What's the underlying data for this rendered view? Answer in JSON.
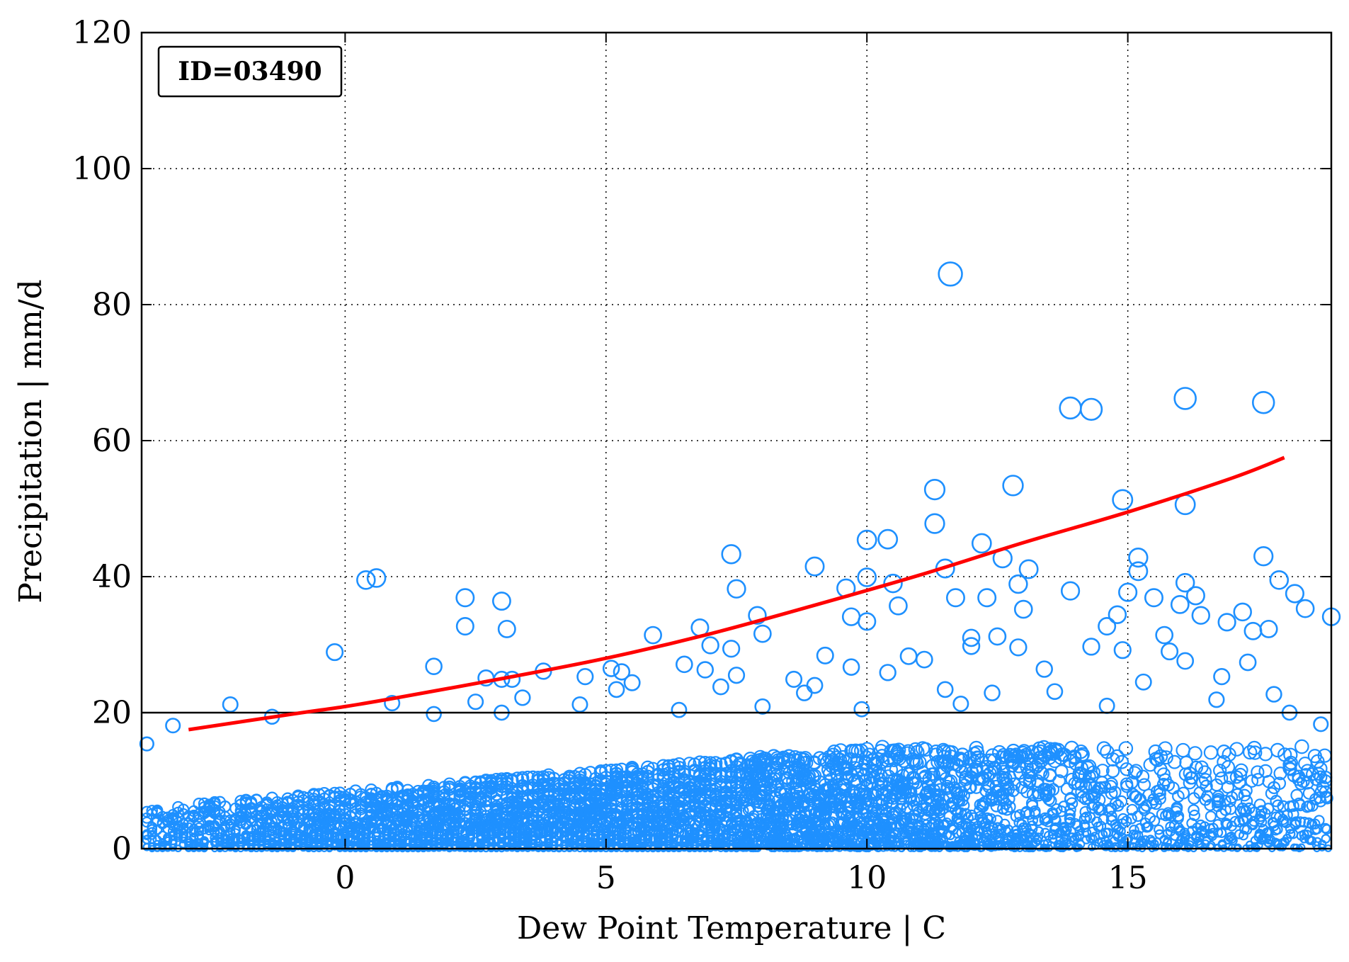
{
  "chart_data": {
    "type": "scatter",
    "xlabel": "Dew Point Temperature | C",
    "ylabel": "Precipitation | mm/d",
    "annotation": "ID=03490",
    "xlim": [
      -3.9,
      18.9
    ],
    "ylim": [
      0,
      120
    ],
    "x_ticks": [
      0,
      5,
      10,
      15
    ],
    "y_ticks": [
      0,
      20,
      40,
      60,
      80,
      100,
      120
    ],
    "grid": true,
    "threshold_line": 20,
    "colors": {
      "marker": "#1E90FF",
      "fit": "#FF0000",
      "axes": "#000000"
    },
    "outliers": [
      {
        "x": 11.6,
        "y": 84.5
      },
      {
        "x": 16.1,
        "y": 66.2
      },
      {
        "x": 17.6,
        "y": 65.6
      },
      {
        "x": 13.9,
        "y": 64.8
      },
      {
        "x": 14.3,
        "y": 64.6
      },
      {
        "x": 12.8,
        "y": 53.4
      },
      {
        "x": 11.3,
        "y": 52.8
      },
      {
        "x": 14.9,
        "y": 51.3
      },
      {
        "x": 16.1,
        "y": 50.6
      },
      {
        "x": 11.3,
        "y": 47.8
      },
      {
        "x": 10.4,
        "y": 45.5
      },
      {
        "x": 10.0,
        "y": 45.4
      },
      {
        "x": 12.2,
        "y": 44.9
      },
      {
        "x": 15.2,
        "y": 42.8
      },
      {
        "x": 17.6,
        "y": 43.0
      },
      {
        "x": 7.4,
        "y": 43.3
      },
      {
        "x": 12.6,
        "y": 42.7
      },
      {
        "x": 9.0,
        "y": 41.5
      },
      {
        "x": 11.5,
        "y": 41.2
      },
      {
        "x": 13.1,
        "y": 41.1
      },
      {
        "x": 15.2,
        "y": 40.8
      },
      {
        "x": 0.4,
        "y": 39.5
      },
      {
        "x": 0.6,
        "y": 39.8
      },
      {
        "x": 10.0,
        "y": 39.9
      },
      {
        "x": 10.5,
        "y": 39.0
      },
      {
        "x": 17.9,
        "y": 39.5
      },
      {
        "x": 16.1,
        "y": 39.1
      },
      {
        "x": 12.9,
        "y": 38.9
      },
      {
        "x": 9.6,
        "y": 38.3
      },
      {
        "x": 7.5,
        "y": 38.2
      },
      {
        "x": 13.9,
        "y": 37.9
      },
      {
        "x": 16.3,
        "y": 37.2
      },
      {
        "x": 18.2,
        "y": 37.5
      },
      {
        "x": 2.3,
        "y": 36.9
      },
      {
        "x": 12.3,
        "y": 36.9
      },
      {
        "x": 3.0,
        "y": 36.4
      },
      {
        "x": 11.7,
        "y": 36.9
      },
      {
        "x": 15.0,
        "y": 37.7
      },
      {
        "x": 15.5,
        "y": 36.9
      },
      {
        "x": 16.0,
        "y": 35.9
      },
      {
        "x": 17.2,
        "y": 34.8
      },
      {
        "x": 18.4,
        "y": 35.3
      },
      {
        "x": 10.6,
        "y": 35.7
      },
      {
        "x": 13.0,
        "y": 35.2
      },
      {
        "x": 14.8,
        "y": 34.4
      },
      {
        "x": 16.4,
        "y": 34.3
      },
      {
        "x": 9.7,
        "y": 34.1
      },
      {
        "x": 7.9,
        "y": 34.3
      },
      {
        "x": 18.9,
        "y": 34.1
      },
      {
        "x": 16.9,
        "y": 33.3
      },
      {
        "x": 10.0,
        "y": 33.4
      },
      {
        "x": 2.3,
        "y": 32.7
      },
      {
        "x": 3.1,
        "y": 32.3
      },
      {
        "x": 6.8,
        "y": 32.5
      },
      {
        "x": 14.6,
        "y": 32.7
      },
      {
        "x": 17.4,
        "y": 32.0
      },
      {
        "x": 17.7,
        "y": 32.3
      },
      {
        "x": 8.0,
        "y": 31.6
      },
      {
        "x": 5.9,
        "y": 31.4
      },
      {
        "x": 12.0,
        "y": 31.0
      },
      {
        "x": 15.7,
        "y": 31.4
      },
      {
        "x": 12.5,
        "y": 31.2
      },
      {
        "x": 14.9,
        "y": 29.2
      },
      {
        "x": 7.0,
        "y": 29.9
      },
      {
        "x": 7.4,
        "y": 29.4
      },
      {
        "x": 12.0,
        "y": 29.8
      },
      {
        "x": 12.9,
        "y": 29.6
      },
      {
        "x": 14.3,
        "y": 29.7
      },
      {
        "x": -0.2,
        "y": 28.9
      },
      {
        "x": 9.2,
        "y": 28.4
      },
      {
        "x": 10.8,
        "y": 28.3
      },
      {
        "x": 15.8,
        "y": 29.0
      },
      {
        "x": 11.1,
        "y": 27.8
      },
      {
        "x": 16.1,
        "y": 27.6
      },
      {
        "x": 17.3,
        "y": 27.4
      },
      {
        "x": 1.7,
        "y": 26.8
      },
      {
        "x": 6.5,
        "y": 27.1
      },
      {
        "x": 9.7,
        "y": 26.7
      },
      {
        "x": 3.8,
        "y": 26.1
      },
      {
        "x": 5.1,
        "y": 26.5
      },
      {
        "x": 5.3,
        "y": 26.0
      },
      {
        "x": 6.9,
        "y": 26.3
      },
      {
        "x": 10.4,
        "y": 25.9
      },
      {
        "x": 13.4,
        "y": 26.4
      },
      {
        "x": 4.6,
        "y": 25.3
      },
      {
        "x": 2.7,
        "y": 25.1
      },
      {
        "x": 3.0,
        "y": 24.9
      },
      {
        "x": 3.2,
        "y": 24.9
      },
      {
        "x": 7.5,
        "y": 25.5
      },
      {
        "x": 8.6,
        "y": 24.9
      },
      {
        "x": 15.3,
        "y": 24.5
      },
      {
        "x": 16.8,
        "y": 25.3
      },
      {
        "x": 5.5,
        "y": 24.4
      },
      {
        "x": 7.2,
        "y": 23.8
      },
      {
        "x": 9.0,
        "y": 24.0
      },
      {
        "x": 11.5,
        "y": 23.4
      },
      {
        "x": 13.6,
        "y": 23.1
      },
      {
        "x": 17.8,
        "y": 22.7
      },
      {
        "x": 5.2,
        "y": 23.4
      },
      {
        "x": 8.8,
        "y": 22.9
      },
      {
        "x": 12.4,
        "y": 22.9
      },
      {
        "x": 1.7,
        "y": 19.8
      },
      {
        "x": 2.5,
        "y": 21.6
      },
      {
        "x": 3.4,
        "y": 22.2
      },
      {
        "x": 0.9,
        "y": 21.4
      },
      {
        "x": 4.5,
        "y": 21.2
      },
      {
        "x": 6.4,
        "y": 20.4
      },
      {
        "x": 8.0,
        "y": 20.9
      },
      {
        "x": -2.2,
        "y": 21.2
      },
      {
        "x": -3.3,
        "y": 18.1
      },
      {
        "x": -1.4,
        "y": 19.4
      },
      {
        "x": -3.8,
        "y": 15.4
      },
      {
        "x": 3.0,
        "y": 20.0
      },
      {
        "x": 9.9,
        "y": 20.5
      },
      {
        "x": 11.8,
        "y": 21.3
      },
      {
        "x": 14.6,
        "y": 21.0
      },
      {
        "x": 16.7,
        "y": 21.9
      },
      {
        "x": 18.1,
        "y": 20.0
      },
      {
        "x": 18.7,
        "y": 18.3
      }
    ],
    "dense_band": {
      "x_range": [
        -3.8,
        18.9
      ],
      "y_range": [
        0,
        18
      ],
      "note": "many small markers near y=0-15 across all x, marker size scales with y"
    },
    "fit_curve": {
      "type": "line",
      "x": [
        -3.0,
        -1.0,
        0,
        1.0,
        3.0,
        5.0,
        7.0,
        9.0,
        11.0,
        13.0,
        15.0,
        17.0,
        18.0
      ],
      "y": [
        17.5,
        19.8,
        20.9,
        22.2,
        25.0,
        28.0,
        31.6,
        35.8,
        40.2,
        45.0,
        49.5,
        54.5,
        57.5
      ]
    }
  }
}
